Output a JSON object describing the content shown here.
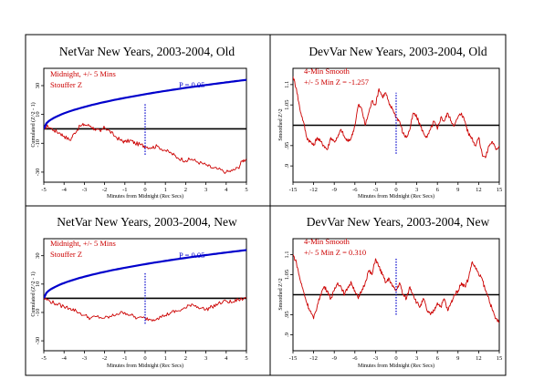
{
  "chart_data": [
    {
      "type": "line",
      "title": "NetVar New Years, 2003-2004, Old",
      "xlabel": "Minutes from Midnight (Rec Secs)",
      "ylabel": "Cumulated (Z^2 - 1)",
      "xlim": [
        -5,
        5
      ],
      "ylim": [
        -37,
        42
      ],
      "xticks": [
        -5,
        -4,
        -3,
        -2,
        -1,
        0,
        1,
        2,
        3,
        4,
        5
      ],
      "yticks": [
        -30,
        -10,
        10,
        30
      ],
      "annotations": [
        {
          "text": "Midnight, +/- 5 Mins",
          "color": "#cc0000"
        },
        {
          "text": "Stouffer Z",
          "color": "#cc0000"
        },
        {
          "text": "P = 0.05",
          "color": "#0000cc"
        }
      ],
      "series": [
        {
          "role": "data",
          "color": "#cc0000",
          "style": "jagged",
          "points": [
            [
              -5,
              0
            ],
            [
              -4.8,
              2
            ],
            [
              -4.5,
              -1
            ],
            [
              -4.2,
              -3
            ],
            [
              -4,
              -5
            ],
            [
              -3.7,
              -8
            ],
            [
              -3.5,
              -3
            ],
            [
              -3.2,
              2
            ],
            [
              -3,
              3
            ],
            [
              -2.7,
              2
            ],
            [
              -2.5,
              0
            ],
            [
              -2.2,
              -2
            ],
            [
              -2,
              1
            ],
            [
              -1.8,
              -1
            ],
            [
              -1.5,
              -5
            ],
            [
              -1.2,
              -8
            ],
            [
              -1,
              -9
            ],
            [
              -0.7,
              -8
            ],
            [
              -0.5,
              -10
            ],
            [
              -0.2,
              -11
            ],
            [
              0,
              -12
            ],
            [
              0.3,
              -13
            ],
            [
              0.6,
              -12
            ],
            [
              1,
              -15
            ],
            [
              1.3,
              -17
            ],
            [
              1.6,
              -20
            ],
            [
              2,
              -22
            ],
            [
              2.3,
              -21
            ],
            [
              2.6,
              -23
            ],
            [
              3,
              -25
            ],
            [
              3.3,
              -27
            ],
            [
              3.6,
              -28
            ],
            [
              4,
              -30
            ],
            [
              4.3,
              -29
            ],
            [
              4.6,
              -27
            ],
            [
              4.8,
              -22
            ],
            [
              5,
              -21
            ]
          ]
        },
        {
          "role": "p05_envelope",
          "color": "#0000cc",
          "style": "smooth",
          "x_start": -5,
          "x_end": 5,
          "y_at_end": 34
        },
        {
          "role": "midnight_marker",
          "color": "#0000cc",
          "style": "dotted",
          "x": 0,
          "y_range": [
            -18,
            18
          ]
        }
      ]
    },
    {
      "type": "line",
      "title": "DevVar New Years, 2003-2004, Old",
      "xlabel": "Minutes from Midnight (Rec Secs)",
      "ylabel": "Smoothed Z^2",
      "xlim": [
        -15,
        15
      ],
      "ylim": [
        0.86,
        1.14
      ],
      "xticks": [
        -15,
        -12,
        -9,
        -6,
        -3,
        0,
        3,
        6,
        9,
        12,
        15
      ],
      "yticks": [
        0.9,
        0.95,
        1.05,
        1.1
      ],
      "annotations": [
        {
          "text": "4-Min Smooth",
          "color": "#cc0000"
        },
        {
          "text": "+/- 5 Min Z = -1.257",
          "color": "#cc0000"
        }
      ],
      "series": [
        {
          "role": "data",
          "color": "#cc0000",
          "style": "jagged",
          "points": [
            [
              -15,
              1.12
            ],
            [
              -14.5,
              1.09
            ],
            [
              -14,
              1.04
            ],
            [
              -13.5,
              1.01
            ],
            [
              -13,
              0.97
            ],
            [
              -12.5,
              0.96
            ],
            [
              -12,
              0.95
            ],
            [
              -11.5,
              0.97
            ],
            [
              -11,
              0.96
            ],
            [
              -10.5,
              0.95
            ],
            [
              -10,
              0.94
            ],
            [
              -9.5,
              0.97
            ],
            [
              -9,
              0.96
            ],
            [
              -8.5,
              0.97
            ],
            [
              -8,
              0.99
            ],
            [
              -7.5,
              0.97
            ],
            [
              -7,
              0.96
            ],
            [
              -6.5,
              0.97
            ],
            [
              -6,
              1.0
            ],
            [
              -5.5,
              1.05
            ],
            [
              -5,
              1.04
            ],
            [
              -4.5,
              1.0
            ],
            [
              -4,
              1.03
            ],
            [
              -3.5,
              1.06
            ],
            [
              -3,
              1.05
            ],
            [
              -2.5,
              1.09
            ],
            [
              -2,
              1.07
            ],
            [
              -1.5,
              1.08
            ],
            [
              -1,
              1.05
            ],
            [
              -0.5,
              1.04
            ],
            [
              0,
              1.02
            ],
            [
              0.5,
              1.01
            ],
            [
              1,
              0.98
            ],
            [
              1.5,
              0.97
            ],
            [
              2,
              0.99
            ],
            [
              2.5,
              1.03
            ],
            [
              3,
              1.02
            ],
            [
              3.5,
              1.0
            ],
            [
              4,
              0.98
            ],
            [
              4.5,
              0.97
            ],
            [
              5,
              0.99
            ],
            [
              5.5,
              1.01
            ],
            [
              6,
              0.99
            ],
            [
              6.5,
              1.02
            ],
            [
              7,
              1.01
            ],
            [
              7.5,
              1.03
            ],
            [
              8,
              1.01
            ],
            [
              8.5,
              1.0
            ],
            [
              9,
              1.02
            ],
            [
              9.5,
              1.03
            ],
            [
              10,
              1.01
            ],
            [
              10.5,
              0.98
            ],
            [
              11,
              0.97
            ],
            [
              11.5,
              0.95
            ],
            [
              12,
              0.97
            ],
            [
              12.5,
              0.93
            ],
            [
              13,
              0.92
            ],
            [
              13.5,
              0.95
            ],
            [
              14,
              0.96
            ],
            [
              14.5,
              0.94
            ],
            [
              15,
              0.95
            ]
          ]
        },
        {
          "role": "midnight_marker",
          "color": "#0000cc",
          "style": "dotted",
          "x": 0,
          "y_range": [
            0.93,
            1.08
          ]
        }
      ]
    },
    {
      "type": "line",
      "title": "NetVar New Years, 2003-2004, New",
      "xlabel": "Minutes from Midnight (Rec Secs)",
      "ylabel": "Cumulated (Z^2 - 1)",
      "xlim": [
        -5,
        5
      ],
      "ylim": [
        -37,
        42
      ],
      "xticks": [
        -5,
        -4,
        -3,
        -2,
        -1,
        0,
        1,
        2,
        3,
        4,
        5
      ],
      "yticks": [
        -30,
        -10,
        10,
        30
      ],
      "annotations": [
        {
          "text": "Midnight, +/- 5 Mins",
          "color": "#cc0000"
        },
        {
          "text": "Stouffer Z",
          "color": "#cc0000"
        },
        {
          "text": "P = 0.05",
          "color": "#0000cc"
        }
      ],
      "series": [
        {
          "role": "data",
          "color": "#cc0000",
          "style": "jagged",
          "points": [
            [
              -5,
              0
            ],
            [
              -4.7,
              -2
            ],
            [
              -4.4,
              -4
            ],
            [
              -4,
              -6
            ],
            [
              -3.7,
              -7
            ],
            [
              -3.4,
              -9
            ],
            [
              -3,
              -12
            ],
            [
              -2.7,
              -14
            ],
            [
              -2.4,
              -13
            ],
            [
              -2,
              -14
            ],
            [
              -1.7,
              -13
            ],
            [
              -1.4,
              -11
            ],
            [
              -1,
              -10
            ],
            [
              -0.7,
              -12
            ],
            [
              -0.4,
              -14
            ],
            [
              0,
              -14
            ],
            [
              0.3,
              -15
            ],
            [
              0.6,
              -14
            ],
            [
              1,
              -12
            ],
            [
              1.3,
              -10
            ],
            [
              1.6,
              -9
            ],
            [
              2,
              -7
            ],
            [
              2.3,
              -4
            ],
            [
              2.6,
              -6
            ],
            [
              3,
              -8
            ],
            [
              3.3,
              -6
            ],
            [
              3.6,
              -4
            ],
            [
              4,
              -2
            ],
            [
              4.3,
              -3
            ],
            [
              4.6,
              -1
            ],
            [
              5,
              0
            ]
          ]
        },
        {
          "role": "p05_envelope",
          "color": "#0000cc",
          "style": "smooth",
          "x_start": -5,
          "x_end": 5,
          "y_at_end": 34
        },
        {
          "role": "midnight_marker",
          "color": "#0000cc",
          "style": "dotted",
          "x": 0,
          "y_range": [
            -18,
            18
          ]
        }
      ]
    },
    {
      "type": "line",
      "title": "DevVar New Years, 2003-2004, New",
      "xlabel": "Minutes from Midnight (Rec Secs)",
      "ylabel": "Smoothed Z^2",
      "xlim": [
        -15,
        15
      ],
      "ylim": [
        0.86,
        1.14
      ],
      "xticks": [
        -15,
        -12,
        -9,
        -6,
        -3,
        0,
        3,
        6,
        9,
        12,
        15
      ],
      "yticks": [
        0.9,
        0.95,
        1.05,
        1.1
      ],
      "annotations": [
        {
          "text": "4-Min Smooth",
          "color": "#cc0000"
        },
        {
          "text": "+/- 5 Min Z = 0.310",
          "color": "#cc0000"
        }
      ],
      "series": [
        {
          "role": "data",
          "color": "#cc0000",
          "style": "jagged",
          "points": [
            [
              -15,
              1.1
            ],
            [
              -14.5,
              1.08
            ],
            [
              -14,
              1.04
            ],
            [
              -13.5,
              1.01
            ],
            [
              -13,
              0.98
            ],
            [
              -12.5,
              0.96
            ],
            [
              -12,
              0.94
            ],
            [
              -11.5,
              0.97
            ],
            [
              -11,
              1.0
            ],
            [
              -10.5,
              1.02
            ],
            [
              -10,
              1.01
            ],
            [
              -9.5,
              0.99
            ],
            [
              -9,
              1.01
            ],
            [
              -8.5,
              1.03
            ],
            [
              -8,
              1.02
            ],
            [
              -7.5,
              1.0
            ],
            [
              -7,
              1.02
            ],
            [
              -6.5,
              1.03
            ],
            [
              -6,
              1.01
            ],
            [
              -5.5,
              0.99
            ],
            [
              -5,
              1.01
            ],
            [
              -4.5,
              1.03
            ],
            [
              -4,
              1.06
            ],
            [
              -3.5,
              1.05
            ],
            [
              -3,
              1.09
            ],
            [
              -2.5,
              1.07
            ],
            [
              -2,
              1.05
            ],
            [
              -1.5,
              1.03
            ],
            [
              -1,
              1.04
            ],
            [
              -0.5,
              1.02
            ],
            [
              0,
              1.01
            ],
            [
              0.5,
              1.03
            ],
            [
              1,
              1.0
            ],
            [
              1.5,
              0.99
            ],
            [
              2,
              1.02
            ],
            [
              2.5,
              1.0
            ],
            [
              3,
              0.98
            ],
            [
              3.5,
              0.97
            ],
            [
              4,
              0.99
            ],
            [
              4.5,
              0.96
            ],
            [
              5,
              0.95
            ],
            [
              5.5,
              0.96
            ],
            [
              6,
              0.98
            ],
            [
              6.5,
              0.97
            ],
            [
              7,
              0.99
            ],
            [
              7.5,
              0.96
            ],
            [
              8,
              0.98
            ],
            [
              8.5,
              1.0
            ],
            [
              9,
              1.01
            ],
            [
              9.5,
              1.03
            ],
            [
              10,
              1.02
            ],
            [
              10.5,
              1.04
            ],
            [
              11,
              1.08
            ],
            [
              11.5,
              1.07
            ],
            [
              12,
              1.05
            ],
            [
              12.5,
              1.04
            ],
            [
              13,
              1.01
            ],
            [
              13.5,
              0.99
            ],
            [
              14,
              0.96
            ],
            [
              14.5,
              0.94
            ],
            [
              15,
              0.93
            ]
          ]
        },
        {
          "role": "midnight_marker",
          "color": "#0000cc",
          "style": "dotted",
          "x": 0,
          "y_range": [
            0.95,
            1.09
          ]
        }
      ]
    }
  ]
}
